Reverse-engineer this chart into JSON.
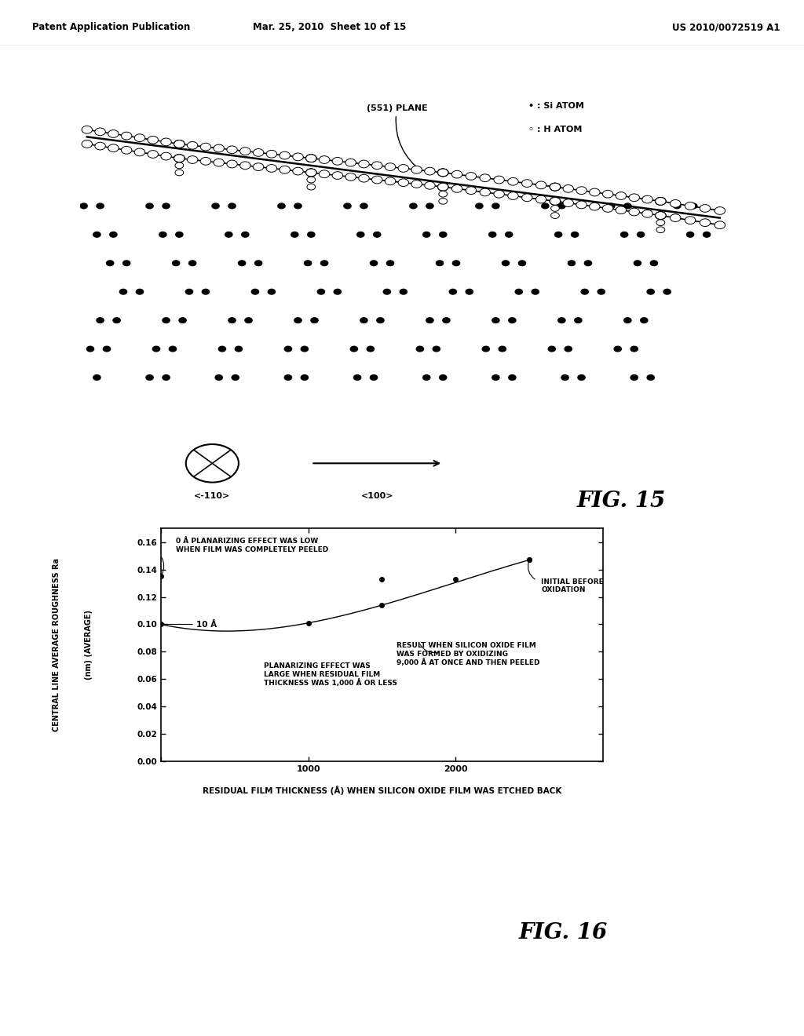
{
  "header_left": "Patent Application Publication",
  "header_mid": "Mar. 25, 2010  Sheet 10 of 15",
  "header_right": "US 2010/0072519 A1",
  "fig15_label": "FIG. 15",
  "fig16_label": "FIG. 16",
  "legend_si": "• : Si ATOM",
  "legend_h": "◦ : H ATOM",
  "plane_label": "(551) PLANE",
  "dir1_label": "<-110>",
  "dir2_label": "<100>",
  "graph_ylabel_line1": "CENTRAL LINE AVERAGE ROUGHNESS Ra",
  "graph_ylabel_line2": "(nm) (AVERAGE)",
  "graph_xlabel": "RESIDUAL FILM THICKNESS (Å) WHEN SILICON OXIDE FILM WAS ETCHED BACK",
  "graph_yticks": [
    0.0,
    0.02,
    0.04,
    0.06,
    0.08,
    0.1,
    0.12,
    0.14,
    0.16
  ],
  "annotation_10A": "10 Å",
  "annotation_0A_line1": "0 Å PLANARIZING EFFECT WAS LOW",
  "annotation_0A_line2": "WHEN FILM WAS COMPLETELY PEELED",
  "annotation_planar_line1": "PLANARIZING EFFECT WAS",
  "annotation_planar_line2": "LARGE WHEN RESIDUAL FILM",
  "annotation_planar_line3": "THICKNESS WAS 1,000 Å OR LESS",
  "annotation_initial_line1": "INITIAL BEFORE",
  "annotation_initial_line2": "OXIDATION",
  "annotation_result_line1": "RESULT WHEN SILICON OXIDE FILM",
  "annotation_result_line2": "WAS FORMED BY OXIDIZING",
  "annotation_result_line3": "9,000 Å AT ONCE AND THEN PEELED",
  "bg_color": "#ffffff"
}
